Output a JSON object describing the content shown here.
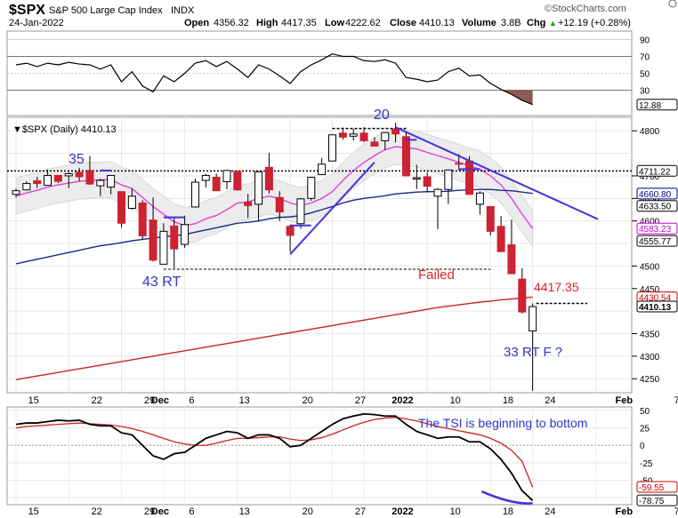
{
  "header": {
    "symbol": "$SPX",
    "name": "S&P 500 Large Cap Index",
    "exchange": "INDX",
    "date": "24-Jan-2022",
    "brand": "©StockCharts.com",
    "open_label": "Open",
    "open": "4356.32",
    "high_label": "High",
    "high": "4417.35",
    "low_label": "Low",
    "low": "4222.62",
    "close_label": "Close",
    "close": "4410.13",
    "volume_label": "Volume",
    "volume": "3.8B",
    "chg_label": "Chg",
    "chg": "+12.19 (+0.28%)",
    "chg_arrow": "▲"
  },
  "main_legend": "▼$SPX (Daily) 4410.13",
  "annotations": {
    "n35": "35",
    "n20": "20",
    "rt43": "43 RT",
    "failed": "Failed",
    "p4417": "4417.35",
    "rt33": "33 RT F ?",
    "tsi_note": "The TSI is beginning to bottom"
  },
  "rsi_ticks": [
    "90",
    "70",
    "50",
    "30"
  ],
  "rsi_value": "12.88",
  "price_ticks": [
    "4800",
    "4700",
    "4650",
    "4600",
    "4500",
    "4450",
    "4350",
    "4300",
    "4250"
  ],
  "price_badges": [
    {
      "text": "4711.22",
      "color": "#000000",
      "bg": "#ffffff"
    },
    {
      "text": "4660.80",
      "color": "#000080",
      "bg": "#ffffff"
    },
    {
      "text": "4633.50",
      "color": "#000000",
      "bg": "#ffffff"
    },
    {
      "text": "4583.23",
      "color": "#cc00cc",
      "bg": "#ffffff"
    },
    {
      "text": "4555.77",
      "color": "#000000",
      "bg": "#ffffff"
    },
    {
      "text": "4430.54",
      "color": "#cc0000",
      "bg": "#ffffff"
    },
    {
      "text": "4410.13",
      "color": "#000000",
      "bg": "#ffffff"
    }
  ],
  "tsi_ticks": [
    "50",
    "25",
    "0",
    "-25",
    "-50",
    "-75"
  ],
  "tsi_badges": [
    {
      "text": "-59.55",
      "color": "#cc0000"
    },
    {
      "text": "-78.75",
      "color": "#000000"
    }
  ],
  "x_axis_labels": [
    "15",
    "22",
    "29",
    "Dec",
    "6",
    "13",
    "20",
    "27",
    "2022",
    "10",
    "18",
    "24",
    "Feb",
    "7"
  ],
  "colors": {
    "up_candle": "#ffffff",
    "down_candle": "#cc2233",
    "ma_magenta": "#e040e0",
    "ma_navy": "#1a2a8c",
    "ma_red": "#cc2222",
    "trendline": "#4433dd",
    "annotation_blue": "#3333cc",
    "annotation_red": "#dd2222"
  },
  "chart_data": {
    "type": "candlestick",
    "title": "$SPX S&P 500 Large Cap Index INDX",
    "dates": [
      "Nov 11",
      "Nov 12",
      "Nov 15",
      "Nov 16",
      "Nov 17",
      "Nov 18",
      "Nov 19",
      "Nov 22",
      "Nov 23",
      "Nov 24",
      "Nov 26",
      "Nov 29",
      "Nov 30",
      "Dec 1",
      "Dec 2",
      "Dec 3",
      "Dec 6",
      "Dec 7",
      "Dec 8",
      "Dec 9",
      "Dec 10",
      "Dec 13",
      "Dec 14",
      "Dec 15",
      "Dec 16",
      "Dec 17",
      "Dec 20",
      "Dec 21",
      "Dec 22",
      "Dec 23",
      "Dec 27",
      "Dec 28",
      "Dec 29",
      "Dec 30",
      "Dec 31",
      "Jan 3",
      "Jan 4",
      "Jan 5",
      "Jan 6",
      "Jan 7",
      "Jan 10",
      "Jan 11",
      "Jan 12",
      "Jan 13",
      "Jan 14",
      "Jan 18",
      "Jan 19",
      "Jan 20",
      "Jan 21",
      "Jan 24"
    ],
    "ohlc": [
      [
        4659,
        4672,
        4652,
        4667
      ],
      [
        4669,
        4688,
        4667,
        4683
      ],
      [
        4689,
        4698,
        4673,
        4683
      ],
      [
        4679,
        4714,
        4679,
        4701
      ],
      [
        4701,
        4701,
        4684,
        4688
      ],
      [
        4700,
        4708,
        4673,
        4705
      ],
      [
        4708,
        4718,
        4688,
        4698
      ],
      [
        4712,
        4744,
        4680,
        4682
      ],
      [
        4678,
        4694,
        4655,
        4690
      ],
      [
        4675,
        4702,
        4659,
        4701
      ],
      [
        4665,
        4665,
        4585,
        4595
      ],
      [
        4628,
        4672,
        4625,
        4655
      ],
      [
        4640,
        4646,
        4560,
        4567
      ],
      [
        4602,
        4652,
        4510,
        4513
      ],
      [
        4504,
        4595,
        4504,
        4577
      ],
      [
        4589,
        4608,
        4495,
        4538
      ],
      [
        4548,
        4612,
        4540,
        4592
      ],
      [
        4631,
        4694,
        4631,
        4686
      ],
      [
        4690,
        4705,
        4674,
        4701
      ],
      [
        4697,
        4705,
        4666,
        4667
      ],
      [
        4687,
        4713,
        4670,
        4712
      ],
      [
        4710,
        4711,
        4667,
        4669
      ],
      [
        4642,
        4660,
        4606,
        4634
      ],
      [
        4637,
        4710,
        4599,
        4709
      ],
      [
        4719,
        4751,
        4661,
        4669
      ],
      [
        4652,
        4666,
        4600,
        4620
      ],
      [
        4588,
        4591,
        4531,
        4568
      ],
      [
        4594,
        4651,
        4583,
        4649
      ],
      [
        4650,
        4697,
        4645,
        4697
      ],
      [
        4703,
        4740,
        4703,
        4726
      ],
      [
        4733,
        4791,
        4733,
        4791
      ],
      [
        4795,
        4807,
        4780,
        4786
      ],
      [
        4788,
        4804,
        4778,
        4793
      ],
      [
        4795,
        4808,
        4775,
        4778
      ],
      [
        4775,
        4786,
        4765,
        4766
      ],
      [
        4778,
        4796,
        4758,
        4796
      ],
      [
        4804,
        4818,
        4774,
        4793
      ],
      [
        4787,
        4798,
        4699,
        4700
      ],
      [
        4693,
        4725,
        4671,
        4696
      ],
      [
        4698,
        4708,
        4663,
        4677
      ],
      [
        4655,
        4673,
        4582,
        4670
      ],
      [
        4670,
        4714,
        4638,
        4713
      ],
      [
        4728,
        4749,
        4713,
        4726
      ],
      [
        4733,
        4744,
        4660,
        4659
      ],
      [
        4637,
        4666,
        4614,
        4662
      ],
      [
        4632,
        4632,
        4568,
        4577
      ],
      [
        4588,
        4611,
        4532,
        4532
      ],
      [
        4547,
        4603,
        4483,
        4483
      ],
      [
        4471,
        4495,
        4395,
        4398
      ],
      [
        4356,
        4417,
        4223,
        4410
      ]
    ],
    "price_ylim": [
      4215,
      4830
    ],
    "moving_averages": [
      {
        "name": "magenta",
        "values": [
          4655,
          4662,
          4668,
          4675,
          4680,
          4684,
          4688,
          4690,
          4691,
          4692,
          4680,
          4672,
          4652,
          4632,
          4615,
          4598,
          4590,
          4594,
          4605,
          4612,
          4625,
          4640,
          4642,
          4650,
          4655,
          4650,
          4640,
          4634,
          4640,
          4650,
          4665,
          4690,
          4712,
          4730,
          4745,
          4758,
          4765,
          4762,
          4760,
          4752,
          4745,
          4738,
          4730,
          4722,
          4715,
          4700,
          4680,
          4650,
          4615,
          4583
        ]
      },
      {
        "name": "navy",
        "values": [
          4505,
          4510,
          4515,
          4520,
          4525,
          4530,
          4535,
          4540,
          4545,
          4548,
          4552,
          4556,
          4559,
          4562,
          4565,
          4567,
          4570,
          4575,
          4580,
          4585,
          4590,
          4595,
          4597,
          4600,
          4605,
          4608,
          4609,
          4612,
          4618,
          4625,
          4632,
          4640,
          4646,
          4650,
          4653,
          4656,
          4660,
          4662,
          4664,
          4665,
          4665,
          4666,
          4668,
          4669,
          4670,
          4670,
          4668,
          4667,
          4664,
          4661
        ]
      },
      {
        "name": "red",
        "values": [
          4248,
          4252,
          4256,
          4260,
          4264,
          4268,
          4272,
          4276,
          4280,
          4284,
          4288,
          4292,
          4296,
          4300,
          4304,
          4308,
          4312,
          4316,
          4320,
          4324,
          4328,
          4332,
          4336,
          4340,
          4344,
          4348,
          4352,
          4356,
          4360,
          4364,
          4368,
          4372,
          4376,
          4380,
          4384,
          4388,
          4392,
          4396,
          4400,
          4404,
          4408,
          4411,
          4414,
          4417,
          4420,
          4422,
          4425,
          4427,
          4429,
          4431
        ]
      }
    ],
    "rsi": {
      "ylim": [
        0,
        100
      ],
      "values": [
        60,
        62,
        58,
        62,
        60,
        63,
        61,
        60,
        55,
        60,
        40,
        52,
        35,
        28,
        47,
        40,
        50,
        62,
        65,
        58,
        64,
        55,
        45,
        60,
        55,
        47,
        38,
        52,
        60,
        66,
        73,
        70,
        70,
        65,
        64,
        66,
        62,
        45,
        43,
        40,
        42,
        52,
        56,
        47,
        48,
        38,
        31,
        25,
        18,
        13
      ]
    },
    "tsi": {
      "ylim": [
        -85,
        55
      ],
      "tsi": [
        30,
        32,
        32,
        34,
        36,
        35,
        36,
        30,
        28,
        28,
        18,
        15,
        0,
        -15,
        -20,
        -12,
        -10,
        0,
        10,
        15,
        20,
        18,
        10,
        15,
        15,
        10,
        -2,
        0,
        10,
        20,
        30,
        38,
        42,
        45,
        44,
        42,
        42,
        30,
        20,
        15,
        10,
        12,
        12,
        5,
        5,
        -5,
        -20,
        -40,
        -65,
        -79
      ],
      "signal": [
        25,
        27,
        28,
        29,
        30,
        31,
        32,
        31,
        30,
        29,
        27,
        24,
        20,
        15,
        10,
        5,
        2,
        0,
        0,
        3,
        7,
        10,
        10,
        11,
        12,
        12,
        9,
        7,
        8,
        11,
        16,
        22,
        28,
        33,
        37,
        39,
        40,
        38,
        35,
        31,
        27,
        24,
        21,
        18,
        15,
        10,
        3,
        -7,
        -23,
        -60
      ],
      "ticks": [
        50,
        25,
        0,
        -25,
        -50,
        -75
      ]
    }
  }
}
